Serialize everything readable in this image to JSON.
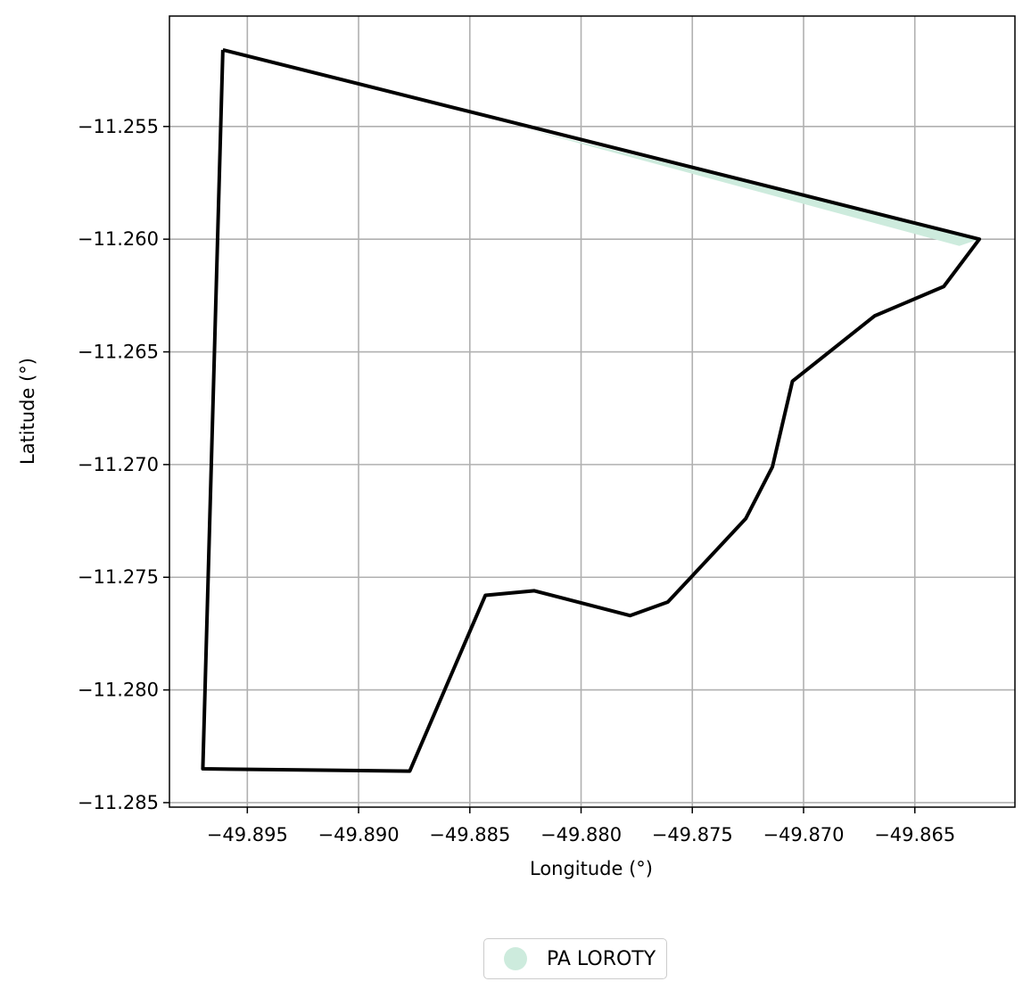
{
  "chart_data": {
    "type": "map",
    "xlabel": "Longitude (°)",
    "ylabel": "Latitude (°)",
    "xlim": [
      -49.8985,
      -49.8605
    ],
    "ylim": [
      -11.2852,
      -11.2501
    ],
    "xticks": [
      -49.895,
      -49.89,
      -49.885,
      -49.88,
      -49.875,
      -49.87,
      -49.865
    ],
    "xtick_labels": [
      "−49.895",
      "−49.890",
      "−49.885",
      "−49.880",
      "−49.875",
      "−49.870",
      "−49.865"
    ],
    "yticks": [
      -11.255,
      -11.26,
      -11.265,
      -11.27,
      -11.275,
      -11.28,
      -11.285
    ],
    "ytick_labels": [
      "−11.255",
      "−11.260",
      "−11.265",
      "−11.270",
      "−11.275",
      "−11.280",
      "−11.285"
    ],
    "grid": true,
    "legend_position": "bottom-center",
    "series": [
      {
        "name": "PA LOROTY",
        "fill_color": "#cdebdd",
        "edge_color": "#000000",
        "polygon": [
          [
            -49.8961,
            -11.2516
          ],
          [
            -49.8621,
            -11.26
          ],
          [
            -49.8637,
            -11.2621
          ],
          [
            -49.8668,
            -11.2634
          ],
          [
            -49.8705,
            -11.2663
          ],
          [
            -49.8714,
            -11.2701
          ],
          [
            -49.8726,
            -11.2724
          ],
          [
            -49.8761,
            -11.2761
          ],
          [
            -49.8778,
            -11.2767
          ],
          [
            -49.8821,
            -11.2756
          ],
          [
            -49.8843,
            -11.2758
          ],
          [
            -49.8877,
            -11.2836
          ],
          [
            -49.897,
            -11.2835
          ],
          [
            -49.8961,
            -11.2516
          ]
        ],
        "fill_polygon": [
          [
            -49.8825,
            -11.2551
          ],
          [
            -49.8621,
            -11.26
          ],
          [
            -49.863,
            -11.2603
          ]
        ]
      }
    ]
  }
}
